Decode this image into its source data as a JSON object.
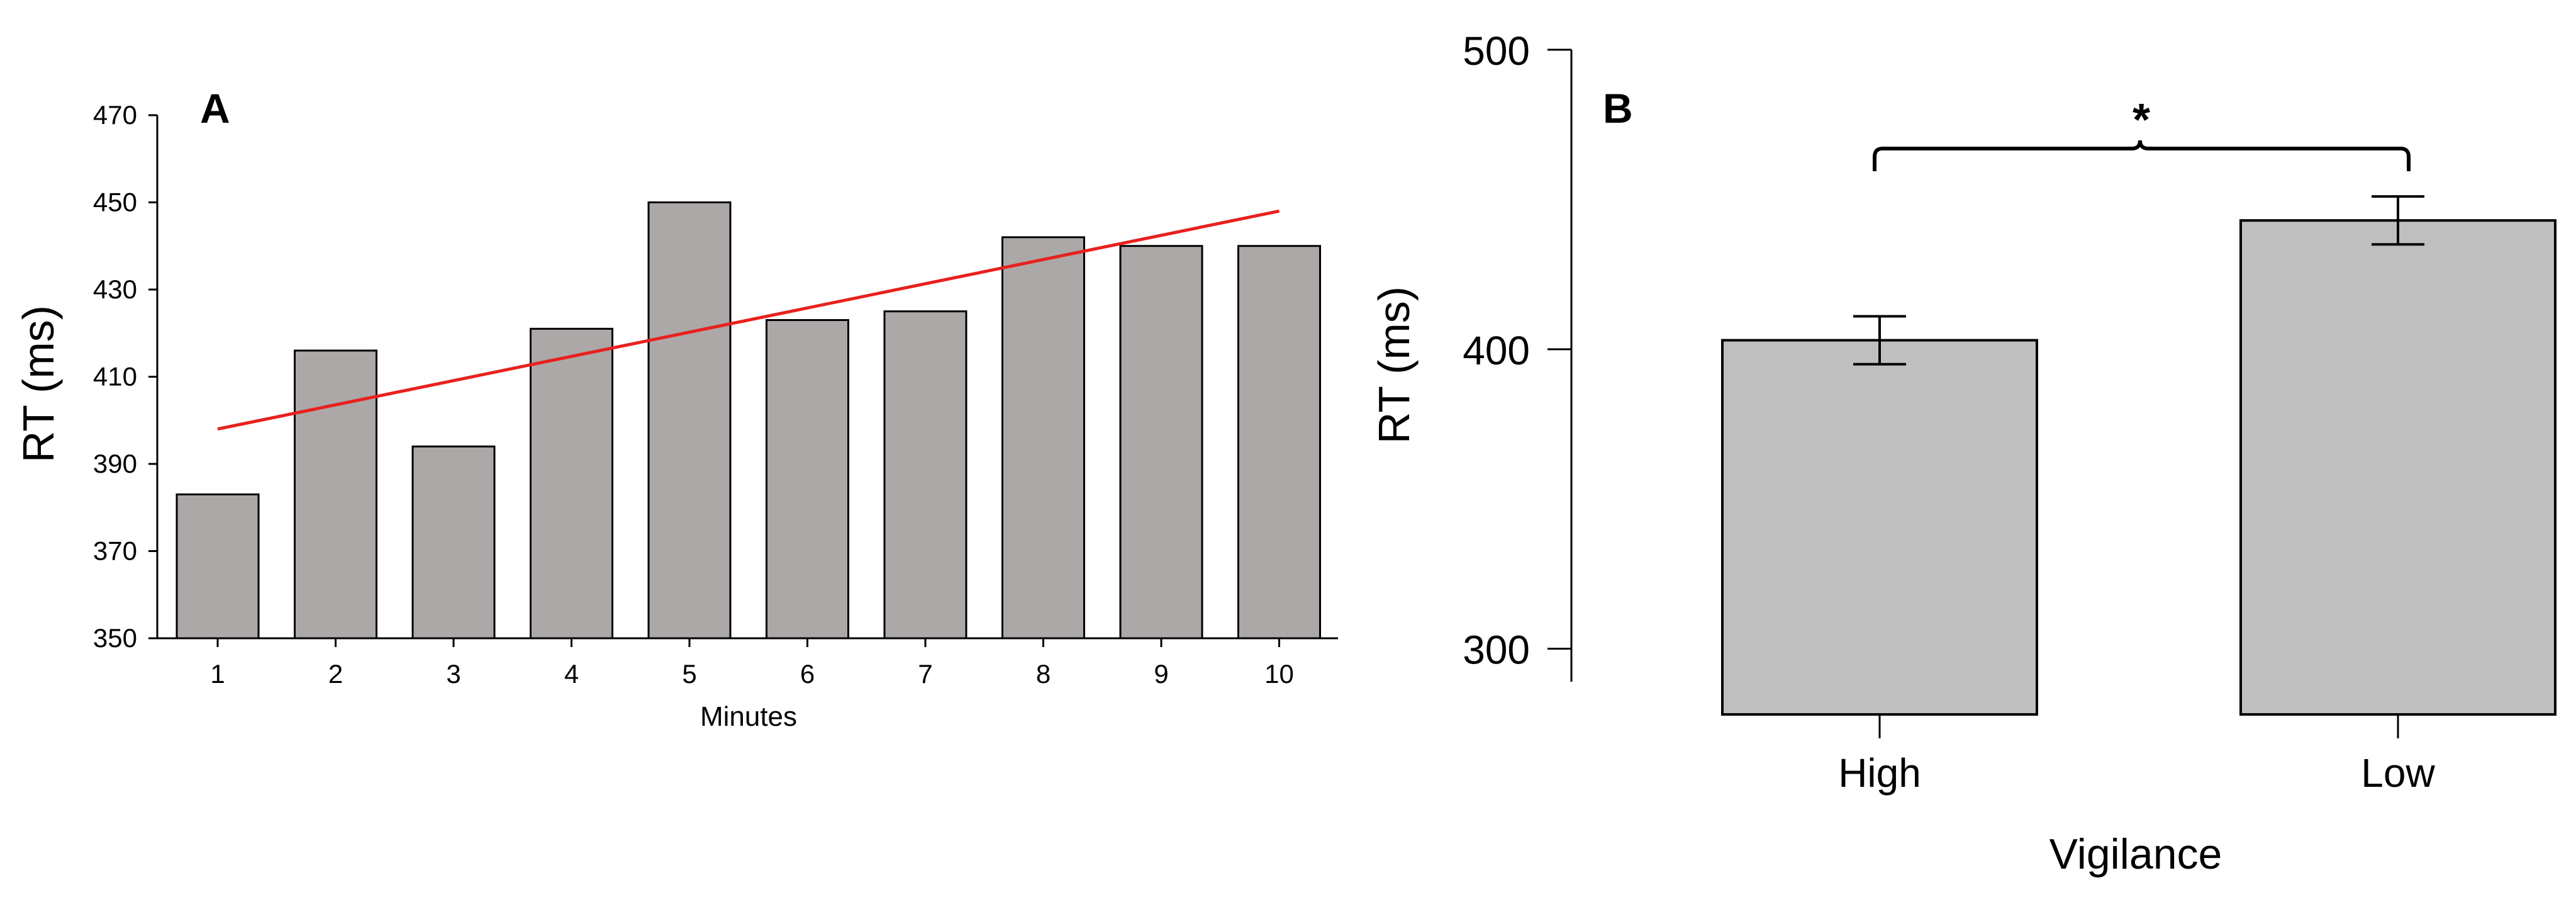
{
  "chart_data": [
    {
      "panel": "A",
      "type": "bar",
      "categories": [
        "1",
        "2",
        "3",
        "4",
        "5",
        "6",
        "7",
        "8",
        "9",
        "10"
      ],
      "values": [
        383,
        416,
        394,
        421,
        450,
        423,
        425,
        442,
        440,
        440
      ],
      "trendline": {
        "x": [
          1,
          10
        ],
        "y": [
          398,
          448
        ],
        "color": "#e8211e"
      },
      "xlabel": "Minutes",
      "ylabel": "RT (ms)",
      "ylim": [
        350,
        470
      ],
      "yticks": [
        "350",
        "370",
        "390",
        "410",
        "430",
        "450",
        "470"
      ],
      "bar_color": "#aca8a7",
      "grid": false
    },
    {
      "panel": "B",
      "type": "bar",
      "categories": [
        "High",
        "Low"
      ],
      "values": [
        403,
        443
      ],
      "error": [
        8,
        8
      ],
      "significance": "*",
      "xlabel": "Vigilance",
      "ylabel": "RT (ms)",
      "ylim": [
        289,
        500
      ],
      "yticks": [
        "300",
        "400",
        "500"
      ],
      "bar_color": "#bfbfbf",
      "grid": false
    }
  ]
}
